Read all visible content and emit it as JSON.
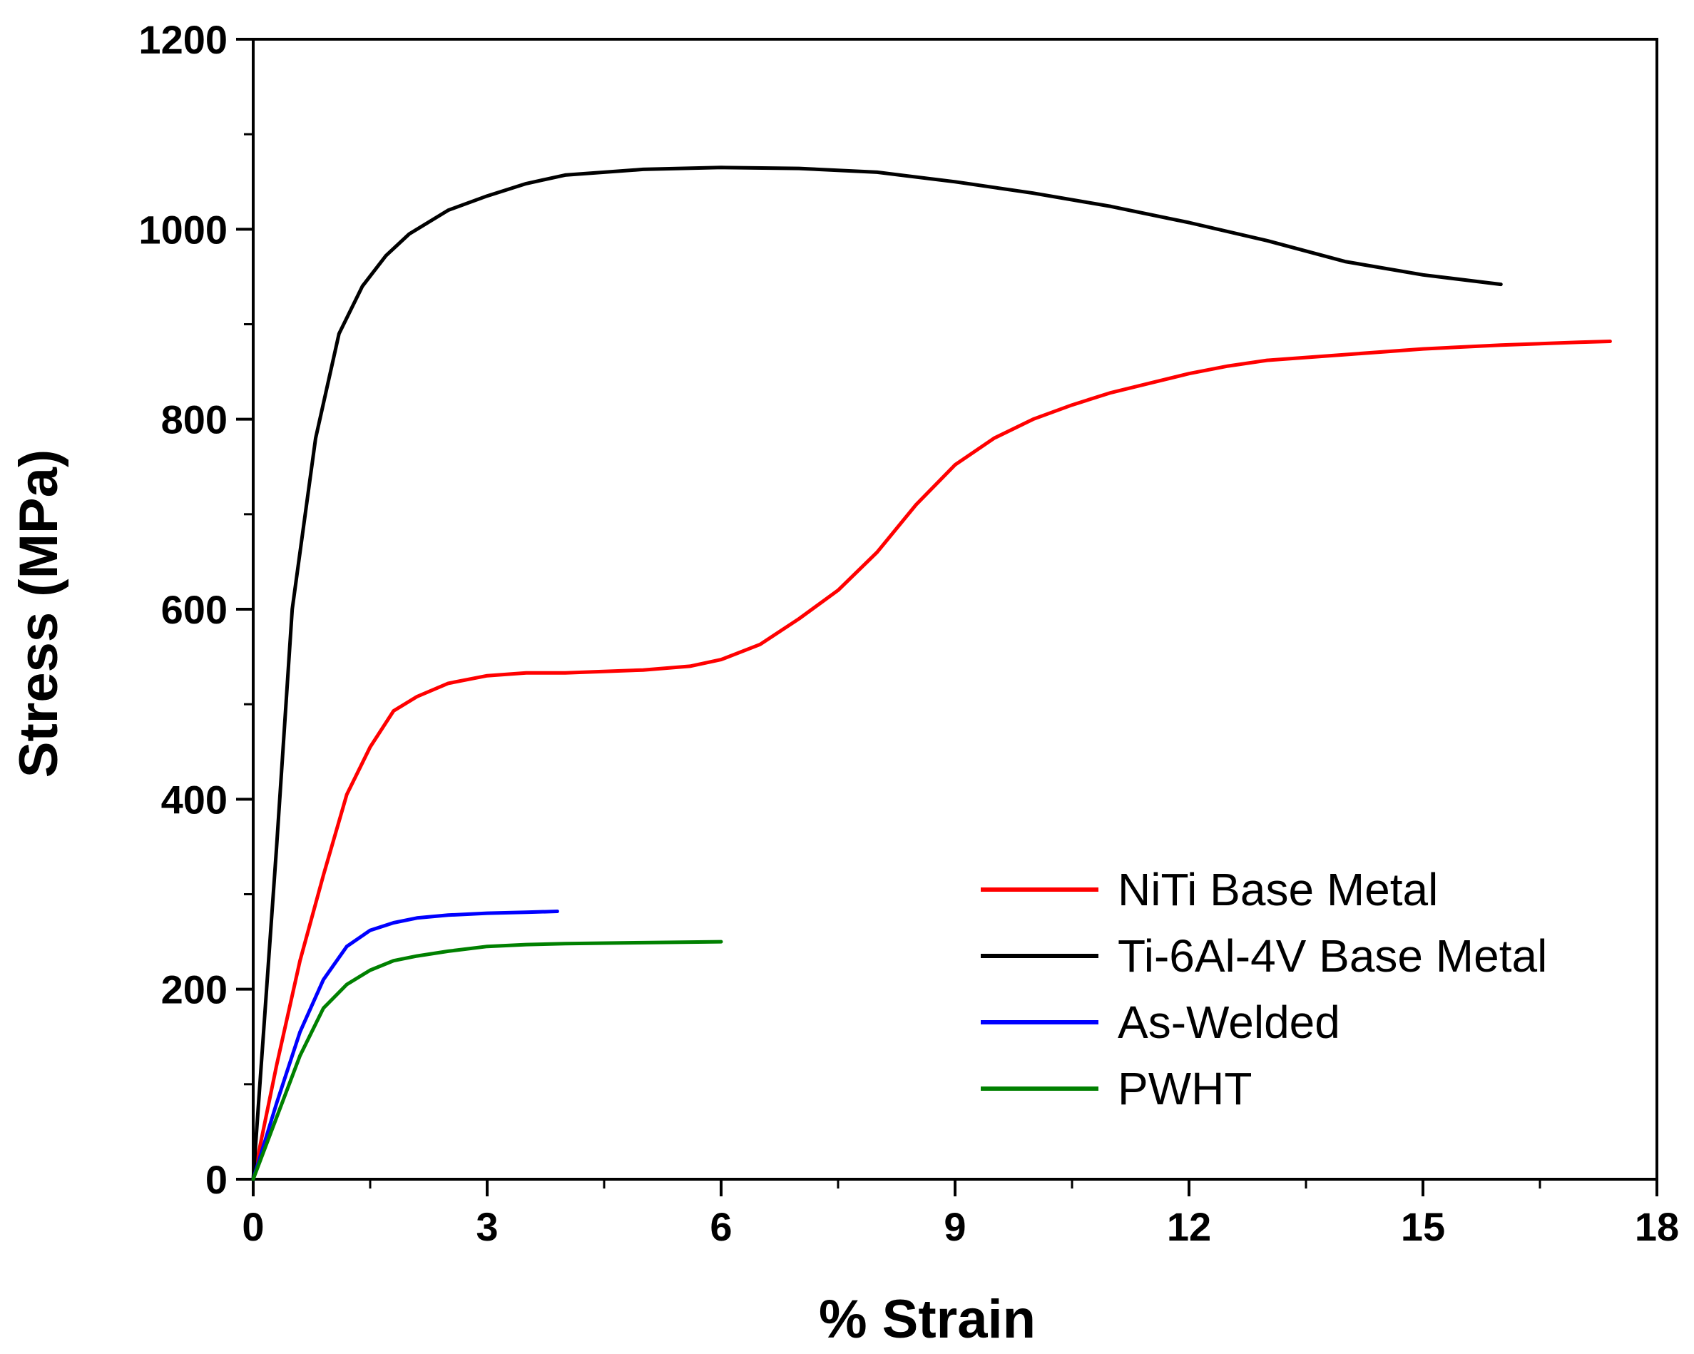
{
  "chart_data": {
    "type": "line",
    "title": "",
    "xlabel": "% Strain",
    "ylabel": "Stress (MPa)",
    "xlim": [
      0,
      18
    ],
    "ylim": [
      0,
      1200
    ],
    "xticks": [
      0,
      3,
      6,
      9,
      12,
      15,
      18
    ],
    "yticks": [
      0,
      200,
      400,
      600,
      800,
      1000,
      1200
    ],
    "xtick_labels": [
      "0",
      "3",
      "6",
      "9",
      "12",
      "15",
      "18"
    ],
    "ytick_labels": [
      "0",
      "200",
      "400",
      "600",
      "800",
      "1000",
      "1200"
    ],
    "x_minor_ticks": [
      1.5,
      4.5,
      7.5,
      10.5,
      13.5,
      16.5
    ],
    "y_minor_ticks": [
      100,
      300,
      500,
      700,
      900,
      1100
    ],
    "grid": false,
    "legend_position": "lower-right",
    "series": [
      {
        "name": "NiTi Base Metal",
        "color": "#ff0000",
        "x": [
          0,
          0.3,
          0.6,
          0.9,
          1.2,
          1.5,
          1.8,
          2.1,
          2.5,
          3.0,
          3.5,
          4.0,
          5.0,
          5.6,
          6.0,
          6.5,
          7.0,
          7.5,
          8.0,
          8.5,
          9.0,
          9.5,
          10.0,
          10.5,
          11.0,
          11.5,
          12.0,
          12.5,
          13.0,
          14.0,
          15.0,
          16.0,
          17.0,
          17.4
        ],
        "y": [
          0,
          120,
          230,
          320,
          405,
          455,
          493,
          508,
          522,
          530,
          533,
          533,
          536,
          540,
          547,
          563,
          590,
          620,
          660,
          710,
          752,
          780,
          800,
          815,
          828,
          838,
          848,
          856,
          862,
          868,
          874,
          878,
          881,
          882
        ]
      },
      {
        "name": "Ti-6Al-4V Base Metal",
        "color": "#000000",
        "x": [
          0,
          0.3,
          0.5,
          0.8,
          1.1,
          1.4,
          1.7,
          2.0,
          2.5,
          3.0,
          3.5,
          4.0,
          5.0,
          6.0,
          7.0,
          8.0,
          9.0,
          10.0,
          11.0,
          12.0,
          13.0,
          14.0,
          15.0,
          16.0
        ],
        "y": [
          0,
          350,
          600,
          780,
          890,
          940,
          972,
          995,
          1020,
          1035,
          1048,
          1057,
          1063,
          1065,
          1064,
          1060,
          1050,
          1038,
          1024,
          1007,
          988,
          966,
          952,
          942
        ]
      },
      {
        "name": "As-Welded",
        "color": "#0000ff",
        "x": [
          0,
          0.3,
          0.6,
          0.9,
          1.2,
          1.5,
          1.8,
          2.1,
          2.5,
          3.0,
          3.5,
          3.9
        ],
        "y": [
          0,
          80,
          155,
          210,
          245,
          262,
          270,
          275,
          278,
          280,
          281,
          282
        ]
      },
      {
        "name": "PWHT",
        "color": "#008000",
        "x": [
          0,
          0.3,
          0.6,
          0.9,
          1.2,
          1.5,
          1.8,
          2.1,
          2.5,
          3.0,
          3.5,
          4.0,
          5.0,
          6.0
        ],
        "y": [
          0,
          65,
          130,
          180,
          205,
          220,
          230,
          235,
          240,
          245,
          247,
          248,
          249,
          250
        ]
      }
    ]
  }
}
